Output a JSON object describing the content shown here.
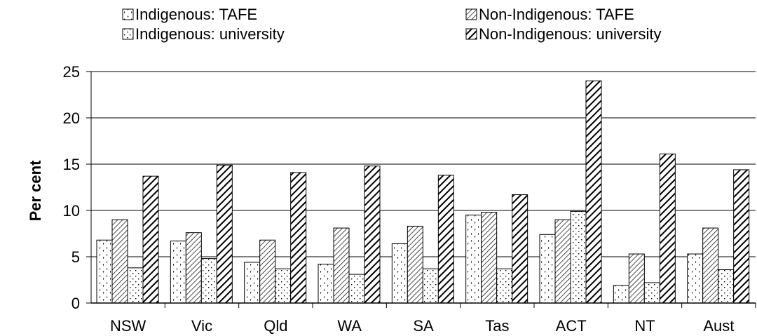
{
  "chart_data": {
    "type": "bar",
    "title": "",
    "xlabel": "",
    "ylabel": "Per cent",
    "ylim": [
      0,
      25
    ],
    "yticks": [
      0,
      5,
      10,
      15,
      20,
      25
    ],
    "grid": true,
    "legend_position": "top",
    "categories": [
      "NSW",
      "Vic",
      "Qld",
      "WA",
      "SA",
      "Tas",
      "ACT",
      "NT",
      "Aust"
    ],
    "series": [
      {
        "name": "Indigenous: TAFE",
        "pattern": "diamond-dots",
        "values": [
          6.8,
          6.7,
          4.4,
          4.2,
          6.4,
          9.5,
          7.4,
          1.9,
          5.3
        ]
      },
      {
        "name": "Non-Indigenous: TAFE",
        "pattern": "fine-diagonal",
        "values": [
          9.0,
          7.6,
          6.8,
          8.1,
          8.3,
          9.8,
          9.0,
          5.3,
          8.1
        ]
      },
      {
        "name": "Indigenous: university",
        "pattern": "sparse-dots",
        "values": [
          3.8,
          4.8,
          3.7,
          3.1,
          3.7,
          3.7,
          9.9,
          2.2,
          3.6
        ]
      },
      {
        "name": "Non-Indigenous: university",
        "pattern": "bold-diagonal",
        "values": [
          13.7,
          14.9,
          14.1,
          14.8,
          13.8,
          11.7,
          24.0,
          16.1,
          14.4
        ]
      }
    ]
  }
}
